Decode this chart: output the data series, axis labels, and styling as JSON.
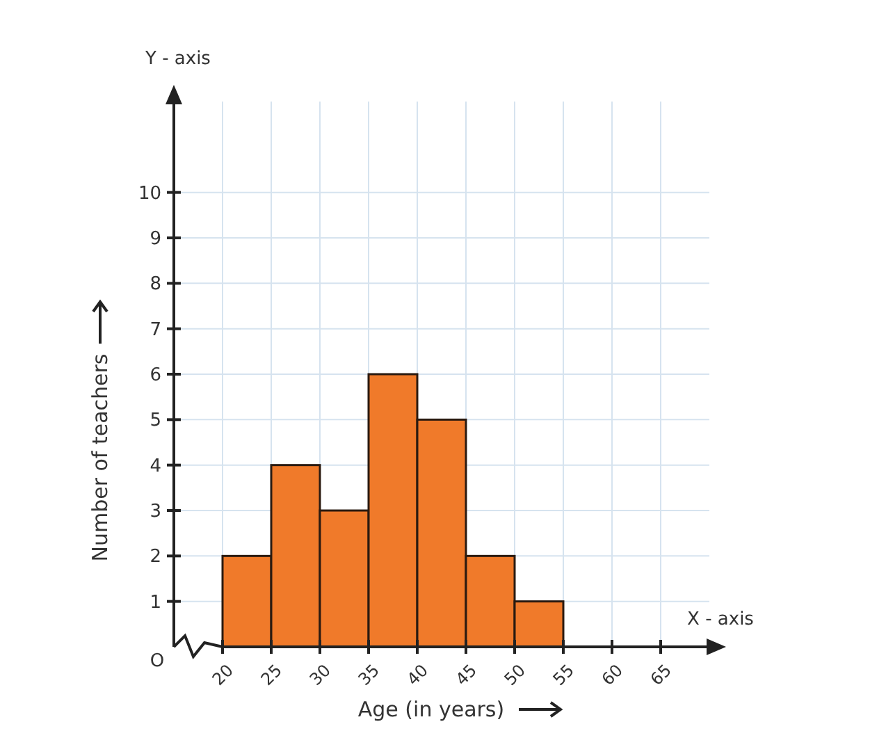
{
  "chart_data": {
    "type": "histogram",
    "xlabel": "Age (in years)",
    "ylabel": "Number of teachers",
    "bins": [
      20,
      25,
      30,
      35,
      40,
      45,
      50,
      55
    ],
    "values": [
      2,
      4,
      3,
      6,
      5,
      2,
      1
    ],
    "color": "#f07a2a",
    "xlim": [
      15,
      70
    ],
    "xticks": [
      20,
      25,
      30,
      35,
      40,
      45,
      50,
      55,
      60,
      65
    ],
    "ylim": [
      0,
      12
    ],
    "yticks": [
      1,
      2,
      3,
      4,
      5,
      6,
      7,
      8,
      9,
      10
    ],
    "grid": true,
    "annotations": [
      "Y - axis",
      "X - axis",
      "O"
    ]
  }
}
